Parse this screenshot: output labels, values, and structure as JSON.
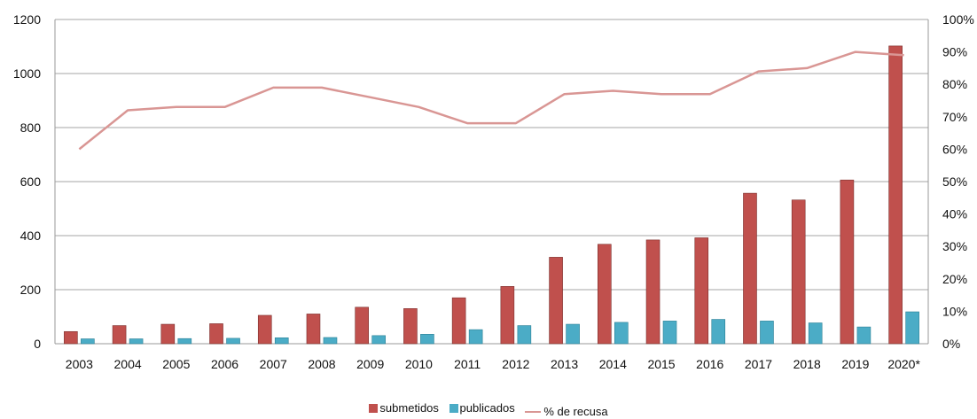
{
  "chart_data": {
    "type": "bar",
    "categories": [
      "2003",
      "2004",
      "2005",
      "2006",
      "2007",
      "2008",
      "2009",
      "2010",
      "2011",
      "2012",
      "2013",
      "2014",
      "2015",
      "2016",
      "2017",
      "2018",
      "2019",
      "2020*"
    ],
    "series": [
      {
        "name": "submetidos",
        "type": "bar",
        "axis": "left",
        "color": "#c0504d",
        "values": [
          45,
          67,
          72,
          74,
          105,
          110,
          135,
          130,
          170,
          212,
          320,
          368,
          384,
          392,
          557,
          532,
          606,
          1102
        ]
      },
      {
        "name": "publicados",
        "type": "bar",
        "axis": "left",
        "color": "#4bacc6",
        "values": [
          18,
          18,
          19,
          20,
          22,
          23,
          30,
          35,
          52,
          67,
          72,
          79,
          84,
          90,
          84,
          77,
          62,
          118
        ]
      },
      {
        "name": "% de recusa",
        "type": "line",
        "axis": "right",
        "color": "#d99694",
        "values": [
          60,
          72,
          73,
          73,
          79,
          79,
          76,
          73,
          68,
          68,
          77,
          78,
          77,
          77,
          84,
          85,
          90,
          89
        ]
      }
    ],
    "yleft_ticks": [
      "0",
      "200",
      "400",
      "600",
      "800",
      "1000",
      "1200"
    ],
    "yleft_lim": [
      0,
      1200
    ],
    "yright_ticks": [
      "0%",
      "10%",
      "20%",
      "30%",
      "40%",
      "50%",
      "60%",
      "70%",
      "80%",
      "90%",
      "100%"
    ],
    "yright_lim": [
      0,
      100
    ],
    "grid": true,
    "legend_position": "bottom"
  }
}
